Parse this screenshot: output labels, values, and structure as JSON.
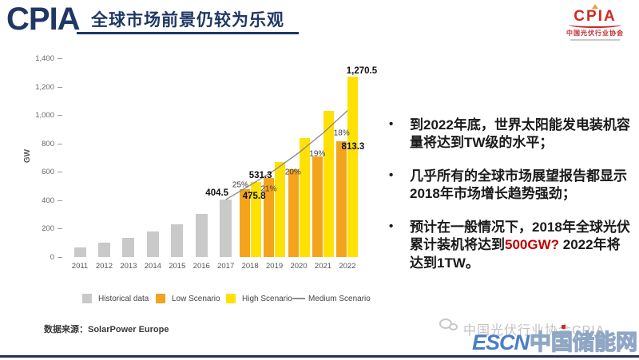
{
  "header": {
    "logo": "CPIA",
    "title": "全球市场前景仍较为乐观"
  },
  "org_badge": {
    "name": "CPIA",
    "subtitle": "中国光伏行业协会"
  },
  "chart_data": {
    "type": "bar",
    "title": "",
    "xlabel": "",
    "ylabel": "GW",
    "ylim": [
      0,
      1400
    ],
    "ytick_values": [
      0,
      200,
      400,
      600,
      800,
      1000,
      1200,
      1400
    ],
    "ytick_labels": [
      "0",
      "200",
      "400",
      "600",
      "800",
      "1,000",
      "1,200",
      "1,400"
    ],
    "categories": [
      "2011",
      "2012",
      "2013",
      "2014",
      "2015",
      "2016",
      "2017",
      "2018",
      "2019",
      "2020",
      "2021",
      "2022"
    ],
    "series": [
      {
        "name": "Historical data",
        "type": "bar",
        "color": "#C9C9C9",
        "values": [
          70,
          100,
          137,
          178,
          229,
          306,
          404.5,
          null,
          null,
          null,
          null,
          null
        ]
      },
      {
        "name": "Low Scenario",
        "type": "bar",
        "color": "#F3A41C",
        "values": [
          null,
          null,
          null,
          null,
          null,
          null,
          null,
          475.8,
          555,
          620,
          710,
          813.3
        ]
      },
      {
        "name": "High Scenario",
        "type": "bar",
        "color": "#FFE105",
        "values": [
          null,
          null,
          null,
          null,
          null,
          null,
          null,
          531.3,
          670,
          840,
          1030,
          1270.5
        ]
      },
      {
        "name": "Medium Scenario",
        "type": "line",
        "color": "#8C8C8C",
        "values": [
          null,
          null,
          null,
          null,
          null,
          null,
          404.5,
          505.6,
          611.8,
          734.2,
          873.7,
          1030.9
        ]
      }
    ],
    "point_labels": [
      {
        "text": "404.5",
        "series": "Historical data",
        "category": "2017"
      },
      {
        "text": "475.8",
        "series": "Low Scenario",
        "category": "2018"
      },
      {
        "text": "531.3",
        "series": "High Scenario",
        "category": "2018"
      },
      {
        "text": "813.3",
        "series": "Low Scenario",
        "category": "2022"
      },
      {
        "text": "1,270.5",
        "series": "High Scenario",
        "category": "2022"
      }
    ],
    "percent_labels": [
      "25%",
      "21%",
      "20%",
      "19%",
      "18%"
    ],
    "legend": [
      "Historical data",
      "Low Scenario",
      "High Scenario",
      "Medium Scenario"
    ],
    "legend_position": "bottom",
    "grid": false
  },
  "source": "数据来源：SolarPower Europe",
  "bullets": [
    {
      "text": "到2022年底，世界太阳能发电装机容量将达到TW级的水平；"
    },
    {
      "text": "几乎所有的全球市场展望报告都显示2018年市场增长趋势强劲；"
    },
    {
      "pre": "预计在一般情况下，2018年全球光伏累计装机将达到",
      "highlight": "500GW?",
      "post": " 2022年将达到1TW。"
    }
  ],
  "footer": {
    "wechat_label": "中国光伏行业协会CPIA",
    "watermark_prefix": "ESCN",
    "watermark_suffix": "中国储能网"
  },
  "colors": {
    "brand_navy": "#1F3765",
    "brand_red": "#D3281E",
    "highlight_red": "#C00000",
    "watermark_blue": "#4A7EC6"
  }
}
